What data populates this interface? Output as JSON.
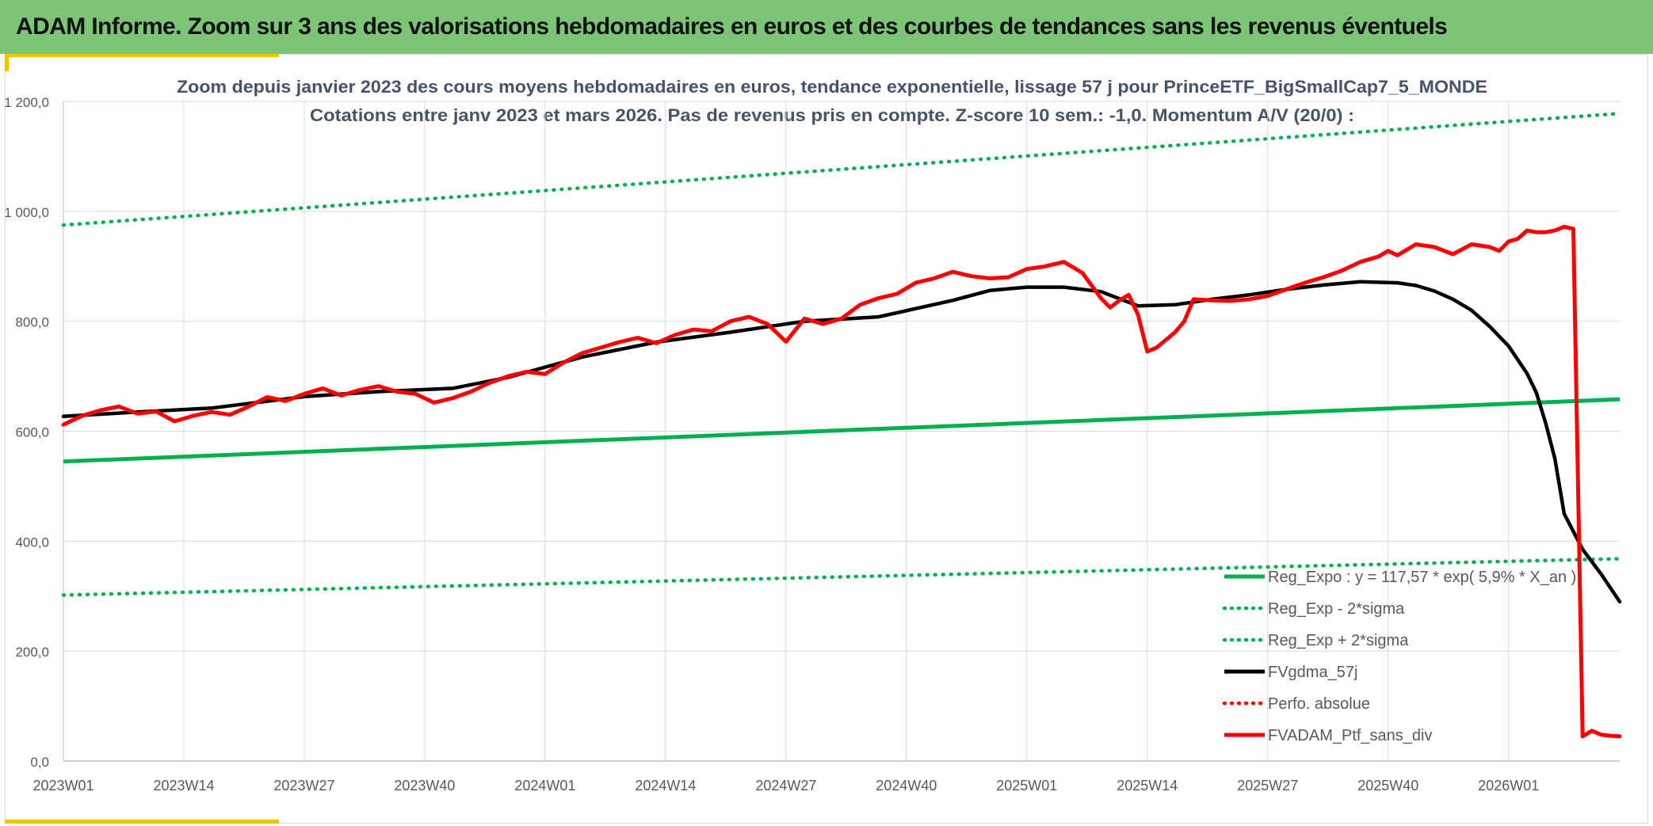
{
  "banner": {
    "title": "ADAM Informe. Zoom sur 3 ans des valorisations hebdomadaires en euros et des courbes de tendances sans les revenus éventuels"
  },
  "colors": {
    "banner_bg": "#7cc576",
    "green": "#00b050",
    "black": "#000000",
    "red": "#ff0000",
    "grid": "#d9d9d9",
    "accent": "#f4c200"
  },
  "chart_data": {
    "type": "line",
    "title_lines": [
      "Zoom depuis janvier 2023 des cours moyens hebdomadaires en euros, tendance exponentielle, lissage 57 j pour PrinceETF_BigSmallCap7_5_MONDE",
      "Cotations entre janv 2023 et mars 2026. Pas de revenus pris en compte. Z-score 10 sem.: -1,0. Momentum A/V (20/0) :"
    ],
    "xlabel": "",
    "ylabel": "",
    "ylim": [
      0,
      1200
    ],
    "y_ticks": [
      "0,0",
      "200,0",
      "400,0",
      "600,0",
      "800,0",
      "1 000,0",
      "1 200,0"
    ],
    "x_tick_labels": [
      "2023W01",
      "2023W14",
      "2023W27",
      "2023W40",
      "2024W01",
      "2024W14",
      "2024W27",
      "2024W40",
      "2025W01",
      "2025W14",
      "2025W27",
      "2025W40",
      "2026W01"
    ],
    "x_range_weeks": [
      0,
      168
    ],
    "grid": true,
    "legend_position": "bottom-right",
    "legend": [
      {
        "label": "Reg_Expo : y = 117,57 * exp( 5,9% * X_an )",
        "color": "#00b050",
        "style": "solid"
      },
      {
        "label": "Reg_Exp - 2*sigma",
        "color": "#00b050",
        "style": "dotted"
      },
      {
        "label": "Reg_Exp + 2*sigma",
        "color": "#00b050",
        "style": "dotted"
      },
      {
        "label": "FVgdma_57j",
        "color": "#000000",
        "style": "solid"
      },
      {
        "label": "Perfo. absolue",
        "color": "#ff0000",
        "style": "dotted"
      },
      {
        "label": "FVADAM_Ptf_sans_div",
        "color": "#ff0000",
        "style": "solid"
      }
    ],
    "series": [
      {
        "key": "reg_expo",
        "color": "#00b050",
        "style": "solid",
        "x": [
          0,
          168
        ],
        "y": [
          545,
          658
        ]
      },
      {
        "key": "reg_minus",
        "color": "#00b050",
        "style": "dotted",
        "x": [
          0,
          168
        ],
        "y": [
          302,
          368
        ]
      },
      {
        "key": "reg_plus",
        "color": "#00b050",
        "style": "dotted",
        "x": [
          0,
          168
        ],
        "y": [
          975,
          1178
        ]
      },
      {
        "key": "fvgdma",
        "color": "#000000",
        "style": "solid",
        "x": [
          0,
          8,
          16,
          26,
          34,
          42,
          48,
          56,
          64,
          72,
          80,
          88,
          96,
          100,
          104,
          108,
          112,
          116,
          120,
          124,
          128,
          132,
          136,
          140,
          144,
          146,
          148,
          150,
          152,
          154,
          156,
          158,
          159,
          160,
          161,
          162,
          164,
          166,
          168
        ],
        "y": [
          627,
          635,
          642,
          663,
          672,
          678,
          698,
          735,
          762,
          780,
          800,
          808,
          838,
          856,
          862,
          862,
          854,
          828,
          830,
          840,
          848,
          858,
          866,
          872,
          870,
          865,
          855,
          840,
          820,
          790,
          755,
          705,
          670,
          615,
          550,
          450,
          385,
          340,
          290
        ]
      },
      {
        "key": "fvadam",
        "color": "#ff0000",
        "style": "solid",
        "x": [
          0,
          2,
          4,
          6,
          8,
          10,
          12,
          14,
          16,
          18,
          20,
          22,
          24,
          26,
          28,
          30,
          32,
          34,
          36,
          38,
          40,
          42,
          44,
          46,
          48,
          50,
          52,
          54,
          56,
          58,
          60,
          62,
          64,
          66,
          68,
          70,
          72,
          74,
          76,
          78,
          80,
          82,
          84,
          86,
          88,
          90,
          92,
          94,
          96,
          98,
          100,
          102,
          104,
          106,
          108,
          110,
          112,
          113,
          114,
          115,
          116,
          117,
          118,
          120,
          121,
          122,
          124,
          126,
          128,
          130,
          132,
          134,
          136,
          138,
          140,
          142,
          143,
          144,
          146,
          148,
          150,
          152,
          154,
          155,
          156,
          157,
          158,
          159,
          160,
          161,
          162,
          163,
          164,
          165,
          166,
          167,
          168
        ],
        "y": [
          612,
          628,
          638,
          645,
          632,
          636,
          618,
          628,
          635,
          630,
          645,
          662,
          655,
          668,
          678,
          665,
          675,
          682,
          672,
          668,
          652,
          660,
          672,
          688,
          700,
          708,
          704,
          725,
          742,
          752,
          762,
          770,
          760,
          775,
          785,
          782,
          800,
          808,
          795,
          763,
          805,
          795,
          805,
          830,
          842,
          850,
          870,
          878,
          890,
          882,
          878,
          880,
          895,
          900,
          908,
          888,
          842,
          825,
          838,
          848,
          812,
          745,
          752,
          780,
          800,
          840,
          838,
          837,
          840,
          846,
          858,
          870,
          880,
          892,
          908,
          918,
          928,
          920,
          940,
          935,
          922,
          940,
          935,
          928,
          945,
          950,
          965,
          962,
          962,
          965,
          972,
          968,
          45,
          55,
          48,
          46,
          45
        ]
      }
    ]
  }
}
